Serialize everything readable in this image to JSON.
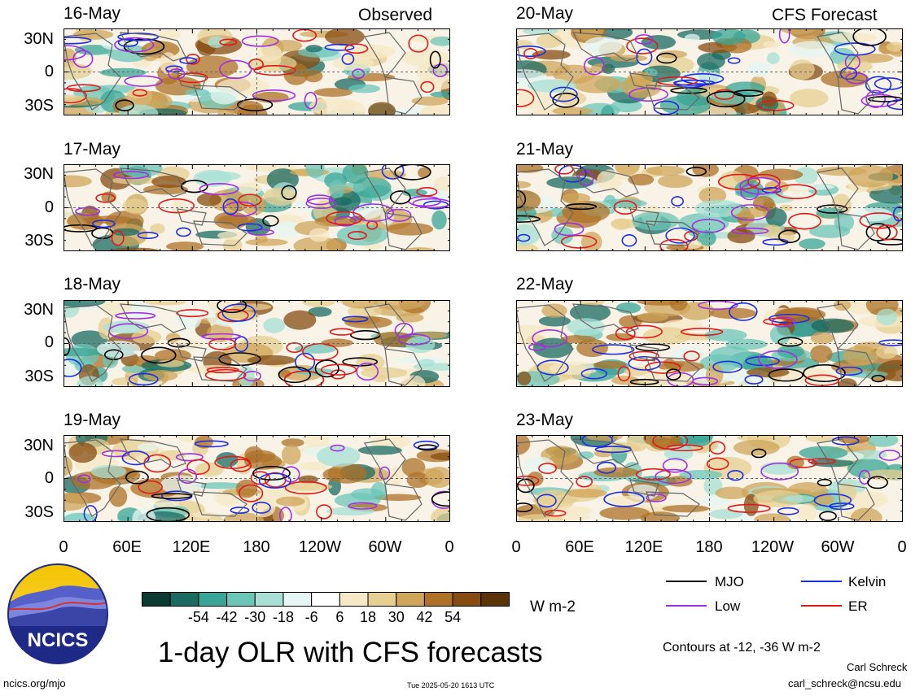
{
  "headers": {
    "left": "Observed",
    "right": "CFS Forecast"
  },
  "left_panels": [
    {
      "date": "16-May"
    },
    {
      "date": "17-May"
    },
    {
      "date": "18-May"
    },
    {
      "date": "19-May"
    }
  ],
  "right_panels": [
    {
      "date": "20-May"
    },
    {
      "date": "21-May"
    },
    {
      "date": "22-May"
    },
    {
      "date": "23-May"
    }
  ],
  "lat_labels": [
    "30N",
    "0",
    "30S"
  ],
  "lon_labels": [
    "0",
    "60E",
    "120E",
    "180",
    "120W",
    "60W",
    "0"
  ],
  "colorbar": {
    "colors": [
      "#0b3b33",
      "#1a6b61",
      "#3aa596",
      "#6cc6b8",
      "#a8e0d6",
      "#e6f6f3",
      "#ffffff",
      "#f7e8c6",
      "#e7cf92",
      "#cfa659",
      "#ad7127",
      "#854c10",
      "#5a3406"
    ],
    "labels": [
      "-54",
      "-42",
      "-30",
      "-18",
      "-6",
      "6",
      "18",
      "30",
      "42",
      "54"
    ],
    "units": "W m-2"
  },
  "legend": [
    {
      "name": "MJO",
      "color": "#000000"
    },
    {
      "name": "Kelvin",
      "color": "#1f2de0"
    },
    {
      "name": "Low",
      "color": "#a030e0"
    },
    {
      "name": "ER",
      "color": "#e01a1a"
    }
  ],
  "contours_note": "Contours at -12, -36 W m-2",
  "title": "1-day OLR with CFS forecasts",
  "logo_text": "NCICS",
  "footer": {
    "url": "ncics.org/mjo",
    "timestamp": "Tue 2025-05-20 1613 UTC",
    "author": "Carl Schreck",
    "email": "carl_schreck@ncsu.edu"
  }
}
